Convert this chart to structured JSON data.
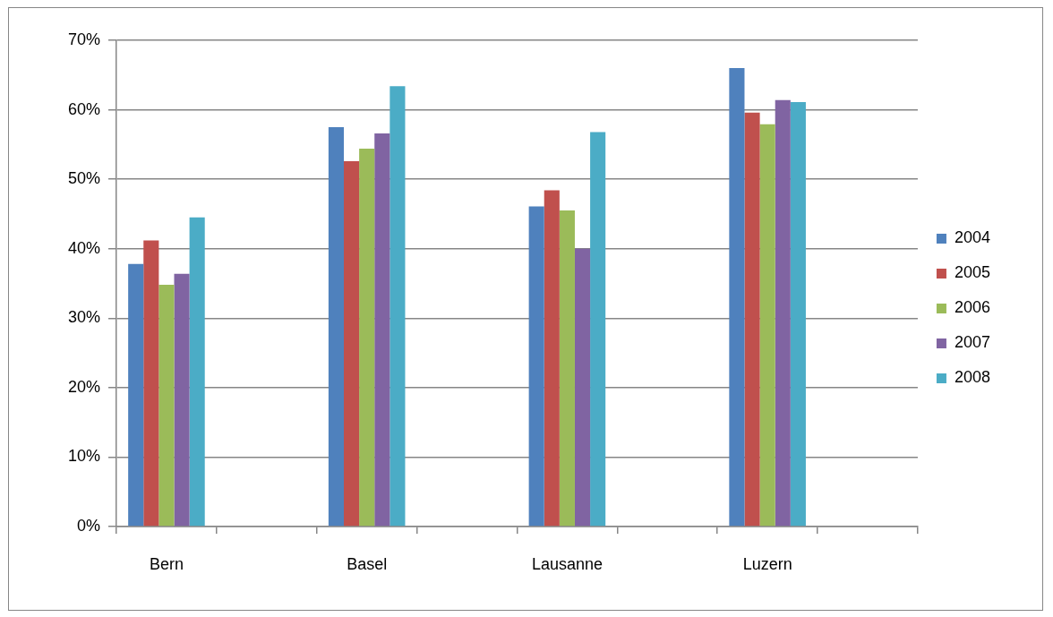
{
  "chart_data": {
    "type": "bar",
    "categories": [
      "Bern",
      null,
      "Basel",
      null,
      "Lausanne",
      null,
      "Luzern",
      null
    ],
    "series": [
      {
        "name": "2004",
        "color": "#4f81bd",
        "values": [
          37.8,
          null,
          57.5,
          null,
          46.1,
          null,
          66.0,
          null
        ]
      },
      {
        "name": "2005",
        "color": "#c0504d",
        "values": [
          41.2,
          null,
          52.6,
          null,
          48.4,
          null,
          59.6,
          null
        ]
      },
      {
        "name": "2006",
        "color": "#9bbb59",
        "values": [
          34.8,
          null,
          54.4,
          null,
          45.5,
          null,
          57.9,
          null
        ]
      },
      {
        "name": "2007",
        "color": "#8064a2",
        "values": [
          36.4,
          null,
          56.6,
          null,
          40.0,
          null,
          61.4,
          null
        ]
      },
      {
        "name": "2008",
        "color": "#4bacc6",
        "values": [
          44.5,
          null,
          63.4,
          null,
          56.8,
          null,
          61.1,
          null
        ]
      }
    ],
    "ylim": [
      0,
      70
    ],
    "yticks": [
      {
        "value": 0,
        "label": "0%"
      },
      {
        "value": 10,
        "label": "10%"
      },
      {
        "value": 20,
        "label": "20%"
      },
      {
        "value": 30,
        "label": "30%"
      },
      {
        "value": 40,
        "label": "40%"
      },
      {
        "value": 50,
        "label": "50%"
      },
      {
        "value": 60,
        "label": "60%"
      },
      {
        "value": 70,
        "label": "70%"
      }
    ],
    "grid": "y",
    "legend": "right"
  }
}
